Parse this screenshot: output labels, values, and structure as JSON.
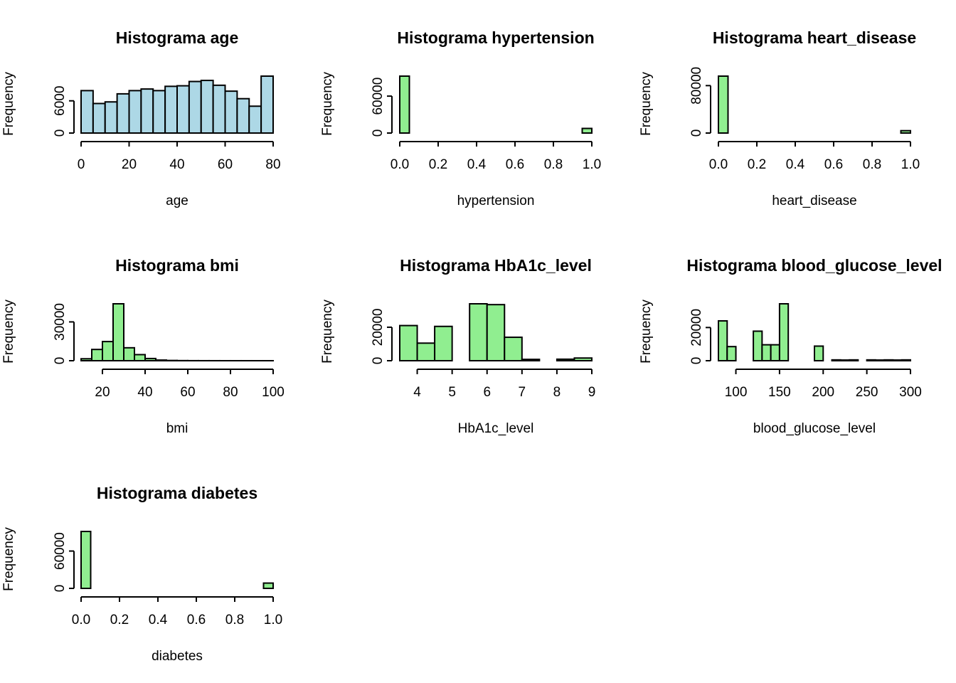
{
  "chart_data": [
    {
      "type": "bar",
      "title": "Histograma age",
      "xlabel": "age",
      "ylabel": "Frequency",
      "fill": "#add8e6",
      "bin_edges": [
        0,
        5,
        10,
        15,
        20,
        25,
        30,
        35,
        40,
        45,
        50,
        55,
        60,
        65,
        70,
        75,
        80
      ],
      "values": [
        7900,
        5500,
        5800,
        7300,
        7900,
        8200,
        7900,
        8700,
        8800,
        9600,
        9800,
        8900,
        7800,
        6400,
        5000,
        10600
      ],
      "xlim": [
        0,
        80
      ],
      "ylim": [
        0,
        10600
      ],
      "xticks": [
        0,
        20,
        40,
        60,
        80
      ],
      "xtick_labels": [
        "0",
        "20",
        "40",
        "60",
        "80"
      ],
      "yticks": [
        0,
        6000
      ],
      "ytick_labels": [
        "0",
        "6000"
      ]
    },
    {
      "type": "bar",
      "title": "Histograma hypertension",
      "xlabel": "hypertension",
      "ylabel": "Frequency",
      "fill": "#90ee90",
      "bin_edges": [
        0,
        0.05,
        0.1,
        0.15,
        0.2,
        0.25,
        0.3,
        0.35,
        0.4,
        0.45,
        0.5,
        0.55,
        0.6,
        0.65,
        0.7,
        0.75,
        0.8,
        0.85,
        0.9,
        0.95,
        1.0
      ],
      "values": [
        92500,
        0,
        0,
        0,
        0,
        0,
        0,
        0,
        0,
        0,
        0,
        0,
        0,
        0,
        0,
        0,
        0,
        0,
        0,
        7500
      ],
      "xlim": [
        0,
        1
      ],
      "ylim": [
        0,
        92500
      ],
      "xticks": [
        0,
        0.2,
        0.4,
        0.6,
        0.8,
        1.0
      ],
      "xtick_labels": [
        "0.0",
        "0.2",
        "0.4",
        "0.6",
        "0.8",
        "1.0"
      ],
      "yticks": [
        0,
        60000
      ],
      "ytick_labels": [
        "0",
        "60000"
      ]
    },
    {
      "type": "bar",
      "title": "Histograma heart_disease",
      "xlabel": "heart_disease",
      "ylabel": "Frequency",
      "fill": "#90ee90",
      "bin_edges": [
        0,
        0.05,
        0.1,
        0.15,
        0.2,
        0.25,
        0.3,
        0.35,
        0.4,
        0.45,
        0.5,
        0.55,
        0.6,
        0.65,
        0.7,
        0.75,
        0.8,
        0.85,
        0.9,
        0.95,
        1.0
      ],
      "values": [
        96000,
        0,
        0,
        0,
        0,
        0,
        0,
        0,
        0,
        0,
        0,
        0,
        0,
        0,
        0,
        0,
        0,
        0,
        0,
        4000
      ],
      "xlim": [
        0,
        1
      ],
      "ylim": [
        0,
        96000
      ],
      "xticks": [
        0,
        0.2,
        0.4,
        0.6,
        0.8,
        1.0
      ],
      "xtick_labels": [
        "0.0",
        "0.2",
        "0.4",
        "0.6",
        "0.8",
        "1.0"
      ],
      "yticks": [
        0,
        80000
      ],
      "ytick_labels": [
        "0",
        "80000"
      ]
    },
    {
      "type": "bar",
      "title": "Histograma bmi",
      "xlabel": "bmi",
      "ylabel": "Frequency",
      "fill": "#90ee90",
      "bin_edges": [
        10,
        15,
        20,
        25,
        30,
        35,
        40,
        45,
        50,
        55,
        60,
        65,
        70,
        75,
        80,
        85,
        90,
        95,
        100
      ],
      "values": [
        1500,
        8700,
        14800,
        44000,
        10000,
        4700,
        1700,
        500,
        200,
        100,
        50,
        30,
        20,
        10,
        10,
        10,
        5,
        5
      ],
      "xlim": [
        10,
        100
      ],
      "ylim": [
        0,
        44000
      ],
      "xticks": [
        20,
        40,
        60,
        80,
        100
      ],
      "xtick_labels": [
        "20",
        "40",
        "60",
        "80",
        "100"
      ],
      "yticks": [
        0,
        30000
      ],
      "ytick_labels": [
        "0",
        "30000"
      ]
    },
    {
      "type": "bar",
      "title": "Histograma HbA1c_level",
      "xlabel": "HbA1c_level",
      "ylabel": "Frequency",
      "fill": "#90ee90",
      "bin_edges": [
        3.5,
        4,
        4.5,
        5,
        5.5,
        6,
        6.5,
        7,
        7.5,
        8,
        8.5,
        9
      ],
      "values": [
        21000,
        10500,
        20500,
        0,
        34000,
        33500,
        14000,
        800,
        0,
        900,
        1600
      ],
      "xlim": [
        3.5,
        9
      ],
      "ylim": [
        0,
        34000
      ],
      "xticks": [
        4,
        5,
        6,
        7,
        8,
        9
      ],
      "xtick_labels": [
        "4",
        "5",
        "6",
        "7",
        "8",
        "9"
      ],
      "yticks": [
        0,
        20000
      ],
      "ytick_labels": [
        "0",
        "20000"
      ]
    },
    {
      "type": "bar",
      "title": "Histograma blood_glucose_level",
      "xlabel": "blood_glucose_level",
      "ylabel": "Frequency",
      "fill": "#90ee90",
      "bin_edges": [
        80,
        90,
        100,
        110,
        120,
        130,
        140,
        150,
        160,
        170,
        180,
        190,
        200,
        210,
        220,
        230,
        240,
        250,
        260,
        270,
        280,
        290,
        300
      ],
      "values": [
        24000,
        8500,
        0,
        0,
        17800,
        9600,
        9600,
        34300,
        0,
        0,
        0,
        8800,
        0,
        500,
        400,
        500,
        0,
        500,
        400,
        500,
        400,
        500
      ],
      "xlim": [
        80,
        300
      ],
      "ylim": [
        0,
        34300
      ],
      "xticks": [
        100,
        150,
        200,
        250,
        300
      ],
      "xtick_labels": [
        "100",
        "150",
        "200",
        "250",
        "300"
      ],
      "yticks": [
        0,
        20000
      ],
      "ytick_labels": [
        "0",
        "20000"
      ]
    },
    {
      "type": "bar",
      "title": "Histograma diabetes",
      "xlabel": "diabetes",
      "ylabel": "Frequency",
      "fill": "#90ee90",
      "bin_edges": [
        0,
        0.05,
        0.1,
        0.15,
        0.2,
        0.25,
        0.3,
        0.35,
        0.4,
        0.45,
        0.5,
        0.55,
        0.6,
        0.65,
        0.7,
        0.75,
        0.8,
        0.85,
        0.9,
        0.95,
        1.0
      ],
      "values": [
        91500,
        0,
        0,
        0,
        0,
        0,
        0,
        0,
        0,
        0,
        0,
        0,
        0,
        0,
        0,
        0,
        0,
        0,
        0,
        8500
      ],
      "xlim": [
        0,
        1
      ],
      "ylim": [
        0,
        91500
      ],
      "xticks": [
        0,
        0.2,
        0.4,
        0.6,
        0.8,
        1.0
      ],
      "xtick_labels": [
        "0.0",
        "0.2",
        "0.4",
        "0.6",
        "0.8",
        "1.0"
      ],
      "yticks": [
        0,
        60000
      ],
      "ytick_labels": [
        "0",
        "60000"
      ]
    }
  ]
}
